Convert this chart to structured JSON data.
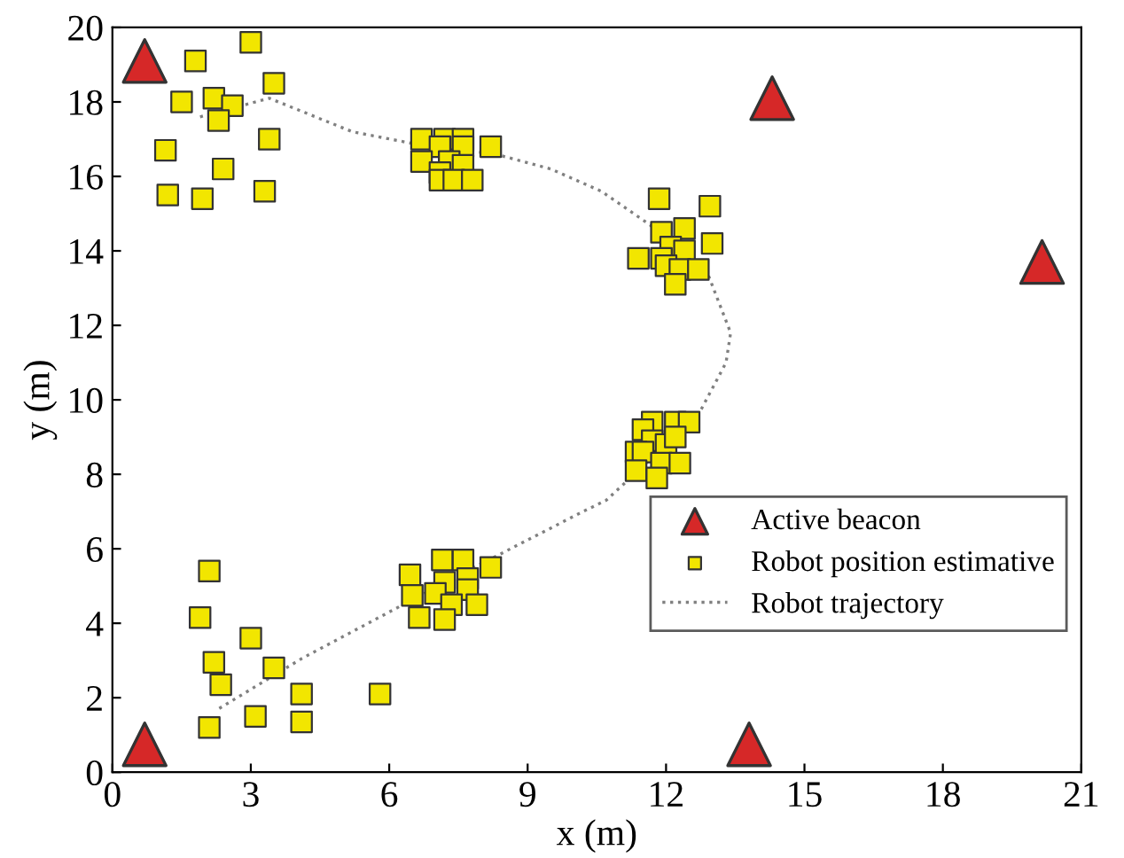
{
  "chart_data": {
    "type": "scatter",
    "xlabel": "x (m)",
    "ylabel": "y (m)",
    "xlim": [
      0,
      21
    ],
    "ylim": [
      0,
      20
    ],
    "xticks": [
      0,
      3,
      6,
      9,
      12,
      15,
      18,
      21
    ],
    "yticks": [
      0,
      2,
      4,
      6,
      8,
      10,
      12,
      14,
      16,
      18,
      20
    ],
    "grid": false,
    "legend": "lower right",
    "series": [
      {
        "name": "Active beacon",
        "marker": "triangle",
        "color": "#d62828",
        "x": [
          0.7,
          14.3,
          20.15,
          0.7,
          13.8
        ],
        "values": [
          19.1,
          18.1,
          13.7,
          0.75,
          0.75
        ]
      },
      {
        "name": "Robot position estimative",
        "marker": "square",
        "color": "#f2e600",
        "x": [
          1.8,
          3.0,
          3.5,
          1.5,
          2.2,
          2.6,
          2.3,
          3.4,
          1.15,
          2.4,
          1.2,
          1.95,
          3.3,
          6.7,
          7.2,
          7.6,
          7.6,
          7.1,
          8.2,
          6.7,
          7.3,
          7.6,
          7.1,
          7.1,
          7.4,
          7.8,
          11.85,
          12.95,
          11.9,
          12.4,
          13.0,
          12.1,
          12.4,
          11.4,
          11.9,
          12.0,
          12.3,
          12.7,
          12.2,
          11.7,
          12.2,
          12.5,
          11.5,
          11.7,
          12.0,
          12.2,
          11.35,
          11.5,
          11.9,
          12.3,
          11.35,
          11.8,
          7.15,
          7.6,
          8.2,
          6.45,
          7.2,
          7.7,
          7.7,
          6.5,
          7.0,
          7.35,
          7.9,
          6.65,
          7.2,
          2.1,
          1.9,
          3.0,
          2.2,
          3.5,
          2.35,
          4.1,
          5.8,
          3.1,
          4.1,
          2.1
        ],
        "values": [
          19.1,
          19.6,
          18.5,
          18.0,
          18.1,
          17.9,
          17.5,
          17.0,
          16.7,
          16.2,
          15.5,
          15.4,
          15.6,
          17.0,
          17.0,
          17.0,
          16.8,
          16.8,
          16.8,
          16.4,
          16.4,
          16.3,
          16.1,
          15.9,
          15.9,
          15.9,
          15.4,
          15.2,
          14.5,
          14.6,
          14.2,
          14.1,
          14.0,
          13.8,
          13.8,
          13.6,
          13.5,
          13.5,
          13.1,
          9.4,
          9.4,
          9.4,
          9.2,
          8.9,
          8.8,
          9.0,
          8.6,
          8.6,
          8.3,
          8.3,
          8.1,
          7.9,
          5.7,
          5.7,
          5.5,
          5.3,
          5.1,
          5.2,
          4.9,
          4.75,
          4.8,
          4.5,
          4.5,
          4.15,
          4.1,
          5.4,
          4.15,
          3.6,
          2.95,
          2.8,
          2.35,
          2.1,
          2.1,
          1.5,
          1.35,
          1.2
        ]
      },
      {
        "name": "Robot trajectory",
        "type": "line",
        "marker": "none",
        "line_style": "dotted",
        "color": "#808080",
        "x": [
          1.9,
          3.4,
          5.2,
          6.65,
          8.3,
          9.5,
          10.6,
          11.65,
          12.9,
          13.4,
          13.3,
          12.7,
          10.7,
          10.2,
          8.0,
          6.3,
          4.1,
          2.3
        ],
        "values": [
          17.6,
          18.1,
          17.2,
          16.85,
          16.6,
          16.2,
          15.6,
          14.7,
          13.4,
          11.8,
          11.0,
          9.6,
          7.3,
          7.0,
          5.6,
          4.5,
          3.05,
          1.7
        ]
      }
    ]
  }
}
